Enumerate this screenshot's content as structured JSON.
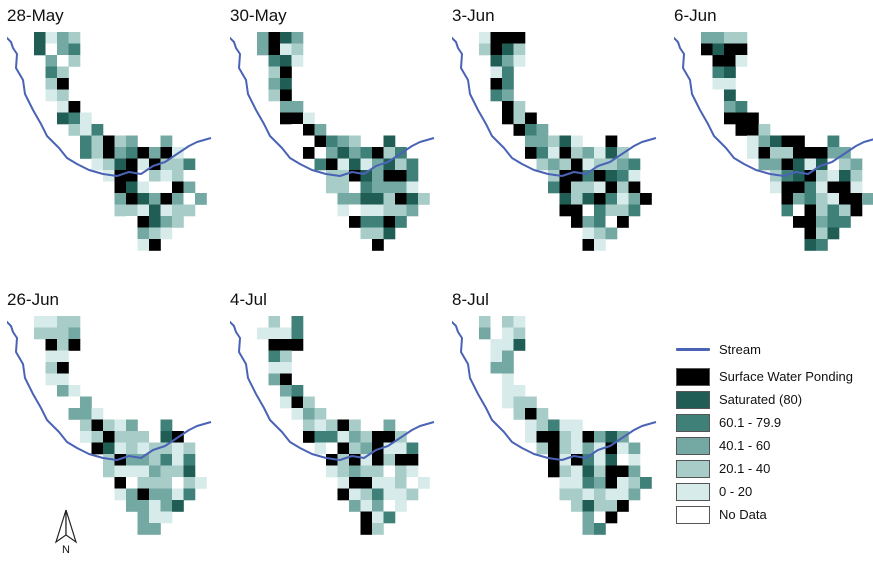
{
  "panels": [
    {
      "date": "28-May"
    },
    {
      "date": "30-May"
    },
    {
      "date": "3-Jun"
    },
    {
      "date": "6-Jun"
    },
    {
      "date": "26-Jun"
    },
    {
      "date": "4-Jul"
    },
    {
      "date": "8-Jul"
    }
  ],
  "legend": {
    "stream": {
      "label": "Stream",
      "color": "#4a63b5"
    },
    "classes": [
      {
        "label": "Surface Water Ponding",
        "color": "#000000"
      },
      {
        "label": "Saturated (80)",
        "color": "#1f5d55"
      },
      {
        "label": "60.1 - 79.9",
        "color": "#3f8079"
      },
      {
        "label": "40.1 - 60",
        "color": "#74a8a3"
      },
      {
        "label": "20.1 - 40",
        "color": "#a8cdc9"
      },
      {
        "label": "0 - 20",
        "color": "#d7ecea"
      },
      {
        "label": "No Data",
        "color": "#ffffff"
      }
    ]
  },
  "north_arrow": {
    "label": "N"
  }
}
